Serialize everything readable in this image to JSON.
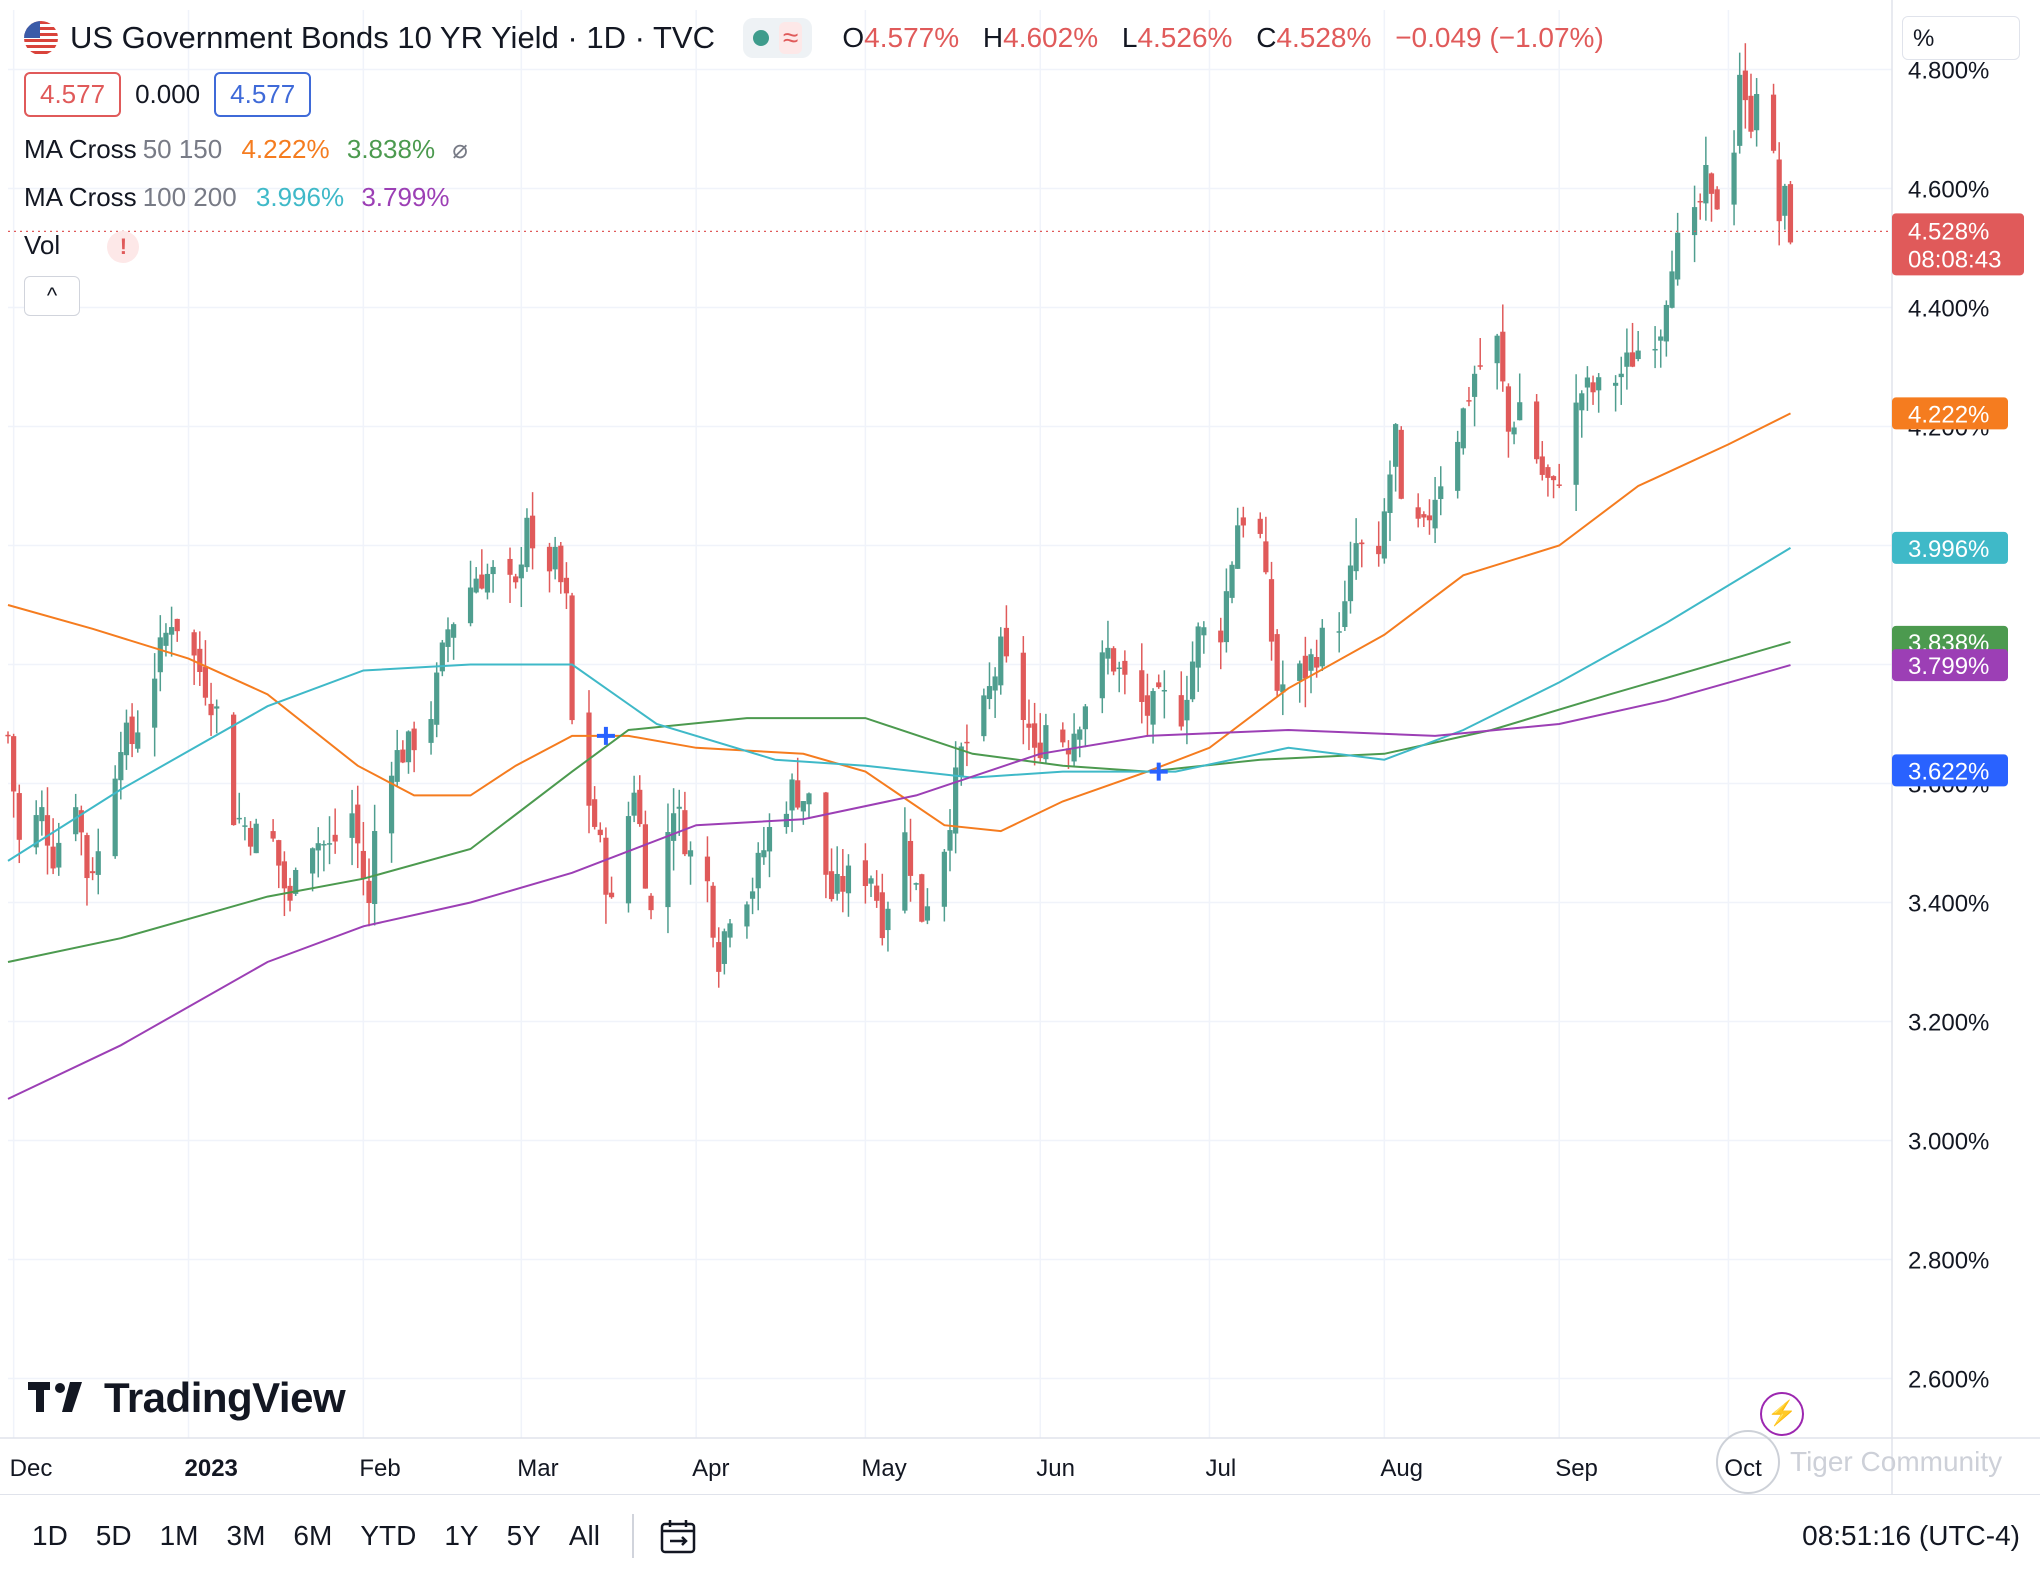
{
  "header": {
    "title": "US Government Bonds 10 YR Yield · 1D · TVC",
    "ohlc": [
      {
        "k": "O",
        "v": "4.577%"
      },
      {
        "k": "H",
        "v": "4.602%"
      },
      {
        "k": "L",
        "v": "4.526%"
      },
      {
        "k": "C",
        "v": "4.528%"
      },
      {
        "k": "",
        "v": "−0.049 (−1.07%)"
      }
    ],
    "wave_glyph": "≈"
  },
  "inputs": {
    "bid": "4.577",
    "spread": "0.000",
    "ask": "4.577"
  },
  "indicators": {
    "ma1": {
      "name": "MA Cross",
      "params": "50 150",
      "v1": "4.222%",
      "v2": "3.838%",
      "v1_color": "#f57c1f",
      "v2_color": "#4c9a4f",
      "hide_glyph": "⌀"
    },
    "ma2": {
      "name": "MA Cross",
      "params": "100 200",
      "v1": "3.996%",
      "v2": "3.799%",
      "v1_color": "#3fb9c8",
      "v2_color": "#9c3fb5"
    },
    "vol": {
      "name": "Vol",
      "warn": "!"
    }
  },
  "unit_label": "%",
  "colors": {
    "up": "#4f9e8f",
    "down": "#e05a5a",
    "ma50": "#f57c1f",
    "ma150": "#4c9a4f",
    "ma100": "#3fb9c8",
    "ma200": "#9c3fb5",
    "cross": "#2962ff"
  },
  "range_buttons": [
    "1D",
    "5D",
    "1M",
    "3M",
    "6M",
    "YTD",
    "1Y",
    "5Y",
    "All"
  ],
  "clock": "08:51:16 (UTC-4)",
  "logo_text": "TradingView",
  "watermark": "Tiger Community",
  "chart_data": {
    "type": "candlestick",
    "title": "US Government Bonds 10 YR Yield",
    "y_ticks": [
      "4.800%",
      "4.600%",
      "4.400%",
      "4.200%",
      "4.000%",
      "3.800%",
      "3.600%",
      "3.400%",
      "3.200%",
      "3.000%",
      "2.800%",
      "2.600%"
    ],
    "y_tick_values": [
      4.8,
      4.6,
      4.4,
      4.2,
      4.0,
      3.8,
      3.6,
      3.4,
      3.2,
      3.0,
      2.8,
      2.6
    ],
    "x_labels": [
      "Dec",
      "2023",
      "Feb",
      "Mar",
      "Apr",
      "May",
      "Jun",
      "Jul",
      "Aug",
      "Sep",
      "Oct"
    ],
    "x_label_dates": [
      "2022-12-01",
      "2023-01-01",
      "2023-02-01",
      "2023-03-01",
      "2023-04-01",
      "2023-05-01",
      "2023-06-01",
      "2023-07-01",
      "2023-08-01",
      "2023-09-01",
      "2023-10-01"
    ],
    "ylim": [
      2.5,
      4.9
    ],
    "xlim": [
      "2022-11-30",
      "2023-10-30"
    ],
    "last_price": {
      "value": 4.528,
      "label": "4.528%",
      "countdown": "08:08:43"
    },
    "price_markers": [
      {
        "value": 4.222,
        "label": "4.222%",
        "color": "#f57c1f"
      },
      {
        "value": 3.996,
        "label": "3.996%",
        "color": "#3fb9c8"
      },
      {
        "value": 3.838,
        "label": "3.838%",
        "color": "#4c9a4f"
      },
      {
        "value": 3.799,
        "label": "3.799%",
        "color": "#9c3fb5"
      },
      {
        "value": 3.622,
        "label": "3.622%",
        "color": "#2962ff"
      }
    ],
    "close_path": [
      [
        "2022-11-30",
        3.68
      ],
      [
        "2022-12-02",
        3.5
      ],
      [
        "2022-12-06",
        3.55
      ],
      [
        "2022-12-08",
        3.48
      ],
      [
        "2022-12-12",
        3.58
      ],
      [
        "2022-12-14",
        3.45
      ],
      [
        "2022-12-16",
        3.48
      ],
      [
        "2022-12-20",
        3.68
      ],
      [
        "2022-12-22",
        3.67
      ],
      [
        "2022-12-27",
        3.82
      ],
      [
        "2022-12-29",
        3.88
      ],
      [
        "2022-12-30",
        3.87
      ],
      [
        "2023-01-03",
        3.79
      ],
      [
        "2023-01-06",
        3.72
      ],
      [
        "2023-01-09",
        3.55
      ],
      [
        "2023-01-12",
        3.52
      ],
      [
        "2023-01-16",
        3.5
      ],
      [
        "2023-01-19",
        3.39
      ],
      [
        "2023-01-20",
        3.48
      ],
      [
        "2023-01-23",
        3.51
      ],
      [
        "2023-01-26",
        3.49
      ],
      [
        "2023-01-30",
        3.55
      ],
      [
        "2023-02-02",
        3.39
      ],
      [
        "2023-02-03",
        3.52
      ],
      [
        "2023-02-06",
        3.64
      ],
      [
        "2023-02-09",
        3.66
      ],
      [
        "2023-02-13",
        3.72
      ],
      [
        "2023-02-16",
        3.86
      ],
      [
        "2023-02-21",
        3.95
      ],
      [
        "2023-02-24",
        3.95
      ],
      [
        "2023-02-28",
        3.92
      ],
      [
        "2023-03-02",
        4.06
      ],
      [
        "2023-03-03",
        3.97
      ],
      [
        "2023-03-07",
        3.97
      ],
      [
        "2023-03-09",
        3.9
      ],
      [
        "2023-03-10",
        3.7
      ],
      [
        "2023-03-13",
        3.57
      ],
      [
        "2023-03-15",
        3.49
      ],
      [
        "2023-03-17",
        3.39
      ],
      [
        "2023-03-21",
        3.6
      ],
      [
        "2023-03-24",
        3.38
      ],
      [
        "2023-03-28",
        3.57
      ],
      [
        "2023-03-31",
        3.48
      ],
      [
        "2023-04-03",
        3.43
      ],
      [
        "2023-04-05",
        3.31
      ],
      [
        "2023-04-07",
        3.39
      ],
      [
        "2023-04-11",
        3.43
      ],
      [
        "2023-04-14",
        3.52
      ],
      [
        "2023-04-18",
        3.59
      ],
      [
        "2023-04-21",
        3.57
      ],
      [
        "2023-04-25",
        3.41
      ],
      [
        "2023-04-28",
        3.44
      ],
      [
        "2023-05-02",
        3.45
      ],
      [
        "2023-05-04",
        3.37
      ],
      [
        "2023-05-08",
        3.51
      ],
      [
        "2023-05-11",
        3.38
      ],
      [
        "2023-05-15",
        3.5
      ],
      [
        "2023-05-18",
        3.65
      ],
      [
        "2023-05-22",
        3.72
      ],
      [
        "2023-05-25",
        3.82
      ],
      [
        "2023-05-30",
        3.69
      ],
      [
        "2023-05-31",
        3.64
      ],
      [
        "2023-06-02",
        3.7
      ],
      [
        "2023-06-06",
        3.67
      ],
      [
        "2023-06-09",
        3.74
      ],
      [
        "2023-06-13",
        3.82
      ],
      [
        "2023-06-16",
        3.77
      ],
      [
        "2023-06-20",
        3.72
      ],
      [
        "2023-06-23",
        3.74
      ],
      [
        "2023-06-26",
        3.72
      ],
      [
        "2023-06-29",
        3.85
      ],
      [
        "2023-07-03",
        3.86
      ],
      [
        "2023-07-06",
        4.04
      ],
      [
        "2023-07-07",
        4.05
      ],
      [
        "2023-07-10",
        4.01
      ],
      [
        "2023-07-13",
        3.76
      ],
      [
        "2023-07-18",
        3.79
      ],
      [
        "2023-07-21",
        3.84
      ],
      [
        "2023-07-25",
        3.89
      ],
      [
        "2023-07-27",
        4.0
      ],
      [
        "2023-07-31",
        3.96
      ],
      [
        "2023-08-01",
        4.05
      ],
      [
        "2023-08-03",
        4.19
      ],
      [
        "2023-08-04",
        4.05
      ],
      [
        "2023-08-08",
        4.02
      ],
      [
        "2023-08-10",
        4.09
      ],
      [
        "2023-08-14",
        4.19
      ],
      [
        "2023-08-17",
        4.29
      ],
      [
        "2023-08-21",
        4.34
      ],
      [
        "2023-08-23",
        4.19
      ],
      [
        "2023-08-25",
        4.24
      ],
      [
        "2023-08-29",
        4.12
      ],
      [
        "2023-08-31",
        4.09
      ],
      [
        "2023-09-05",
        4.26
      ],
      [
        "2023-09-08",
        4.26
      ],
      [
        "2023-09-12",
        4.29
      ],
      [
        "2023-09-15",
        4.33
      ],
      [
        "2023-09-19",
        4.37
      ],
      [
        "2023-09-21",
        4.49
      ],
      [
        "2023-09-25",
        4.54
      ],
      [
        "2023-09-27",
        4.61
      ],
      [
        "2023-09-28",
        4.57
      ],
      [
        "2023-09-29",
        4.58
      ],
      [
        "2023-10-02",
        4.68
      ],
      [
        "2023-10-03",
        4.8
      ],
      [
        "2023-10-04",
        4.73
      ],
      [
        "2023-10-05",
        4.72
      ],
      [
        "2023-10-06",
        4.78
      ],
      [
        "2023-10-09",
        4.64
      ],
      [
        "2023-10-10",
        4.55
      ],
      [
        "2023-10-11",
        4.58
      ],
      [
        "2023-10-12",
        4.53
      ]
    ],
    "ma50": [
      [
        "2022-11-30",
        3.9
      ],
      [
        "2022-12-15",
        3.86
      ],
      [
        "2023-01-01",
        3.81
      ],
      [
        "2023-01-15",
        3.75
      ],
      [
        "2023-01-31",
        3.63
      ],
      [
        "2023-02-10",
        3.58
      ],
      [
        "2023-02-20",
        3.58
      ],
      [
        "2023-02-28",
        3.63
      ],
      [
        "2023-03-10",
        3.68
      ],
      [
        "2023-03-20",
        3.68
      ],
      [
        "2023-04-01",
        3.66
      ],
      [
        "2023-04-20",
        3.65
      ],
      [
        "2023-05-01",
        3.62
      ],
      [
        "2023-05-15",
        3.53
      ],
      [
        "2023-05-25",
        3.52
      ],
      [
        "2023-06-05",
        3.57
      ],
      [
        "2023-06-20",
        3.62
      ],
      [
        "2023-07-01",
        3.66
      ],
      [
        "2023-07-15",
        3.76
      ],
      [
        "2023-08-01",
        3.85
      ],
      [
        "2023-08-15",
        3.95
      ],
      [
        "2023-09-01",
        4.0
      ],
      [
        "2023-09-15",
        4.1
      ],
      [
        "2023-10-01",
        4.17
      ],
      [
        "2023-10-12",
        4.222
      ]
    ],
    "ma150": [
      [
        "2022-11-30",
        3.3
      ],
      [
        "2022-12-20",
        3.34
      ],
      [
        "2023-01-15",
        3.41
      ],
      [
        "2023-02-01",
        3.44
      ],
      [
        "2023-02-20",
        3.49
      ],
      [
        "2023-03-10",
        3.62
      ],
      [
        "2023-03-20",
        3.69
      ],
      [
        "2023-04-10",
        3.71
      ],
      [
        "2023-05-01",
        3.71
      ],
      [
        "2023-05-20",
        3.65
      ],
      [
        "2023-06-05",
        3.63
      ],
      [
        "2023-06-20",
        3.62
      ],
      [
        "2023-07-10",
        3.64
      ],
      [
        "2023-08-01",
        3.65
      ],
      [
        "2023-08-20",
        3.69
      ],
      [
        "2023-09-10",
        3.75
      ],
      [
        "2023-10-12",
        3.838
      ]
    ],
    "ma100": [
      [
        "2022-11-30",
        3.47
      ],
      [
        "2022-12-20",
        3.59
      ],
      [
        "2023-01-15",
        3.73
      ],
      [
        "2023-02-01",
        3.79
      ],
      [
        "2023-02-20",
        3.8
      ],
      [
        "2023-03-10",
        3.8
      ],
      [
        "2023-03-25",
        3.7
      ],
      [
        "2023-04-15",
        3.64
      ],
      [
        "2023-05-01",
        3.63
      ],
      [
        "2023-05-20",
        3.61
      ],
      [
        "2023-06-05",
        3.62
      ],
      [
        "2023-06-25",
        3.62
      ],
      [
        "2023-07-15",
        3.66
      ],
      [
        "2023-08-01",
        3.64
      ],
      [
        "2023-08-15",
        3.69
      ],
      [
        "2023-09-01",
        3.77
      ],
      [
        "2023-09-20",
        3.87
      ],
      [
        "2023-10-12",
        3.996
      ]
    ],
    "ma200": [
      [
        "2022-11-30",
        3.07
      ],
      [
        "2022-12-20",
        3.16
      ],
      [
        "2023-01-15",
        3.3
      ],
      [
        "2023-02-01",
        3.36
      ],
      [
        "2023-02-20",
        3.4
      ],
      [
        "2023-03-10",
        3.45
      ],
      [
        "2023-04-01",
        3.53
      ],
      [
        "2023-04-20",
        3.54
      ],
      [
        "2023-05-10",
        3.58
      ],
      [
        "2023-06-01",
        3.65
      ],
      [
        "2023-06-20",
        3.68
      ],
      [
        "2023-07-15",
        3.69
      ],
      [
        "2023-08-10",
        3.68
      ],
      [
        "2023-09-01",
        3.7
      ],
      [
        "2023-09-20",
        3.74
      ],
      [
        "2023-10-12",
        3.799
      ]
    ],
    "crosses": [
      {
        "date": "2023-03-16",
        "value": 3.68
      },
      {
        "date": "2023-06-22",
        "value": 3.62
      }
    ]
  }
}
